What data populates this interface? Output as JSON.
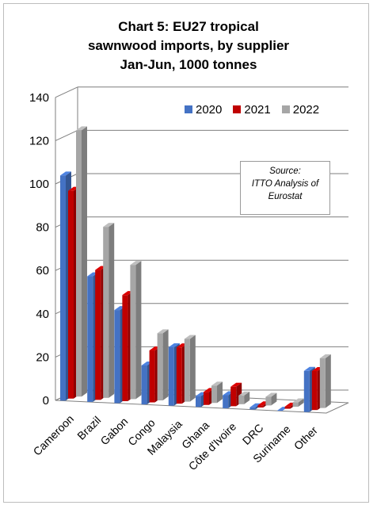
{
  "title_lines": [
    "Chart 5: EU27 tropical",
    "sawnwood imports, by supplier",
    "Jan-Jun, 1000 tonnes"
  ],
  "source_lines": [
    "Source:",
    "ITTO Analysis of",
    "Eurostat"
  ],
  "colors": {
    "2020": "#4472c4",
    "2021": "#c00000",
    "2022": "#a6a6a6"
  },
  "chart_data": {
    "type": "bar",
    "title": "Chart 5: EU27 tropical sawnwood imports, by supplier Jan-Jun, 1000 tonnes",
    "categories": [
      "Cameroon",
      "Brazil",
      "Gabon",
      "Congo",
      "Malaysia",
      "Ghana",
      "Côte d'Ivoire",
      "DRC",
      "Suriname",
      "Other"
    ],
    "series": [
      {
        "name": "2020",
        "values": [
          104,
          58,
          43,
          18,
          27,
          5,
          6,
          1,
          0,
          19
        ]
      },
      {
        "name": "2021",
        "values": [
          96,
          60,
          49,
          24,
          26,
          6,
          9,
          1,
          1,
          18
        ]
      },
      {
        "name": "2022",
        "values": [
          123,
          79,
          62,
          31,
          29,
          8,
          4,
          4,
          2,
          23
        ]
      }
    ],
    "yticks": [
      0,
      20,
      40,
      60,
      80,
      100,
      120,
      140
    ],
    "ylim": [
      0,
      140
    ],
    "legend": "top-right",
    "grid": true
  }
}
